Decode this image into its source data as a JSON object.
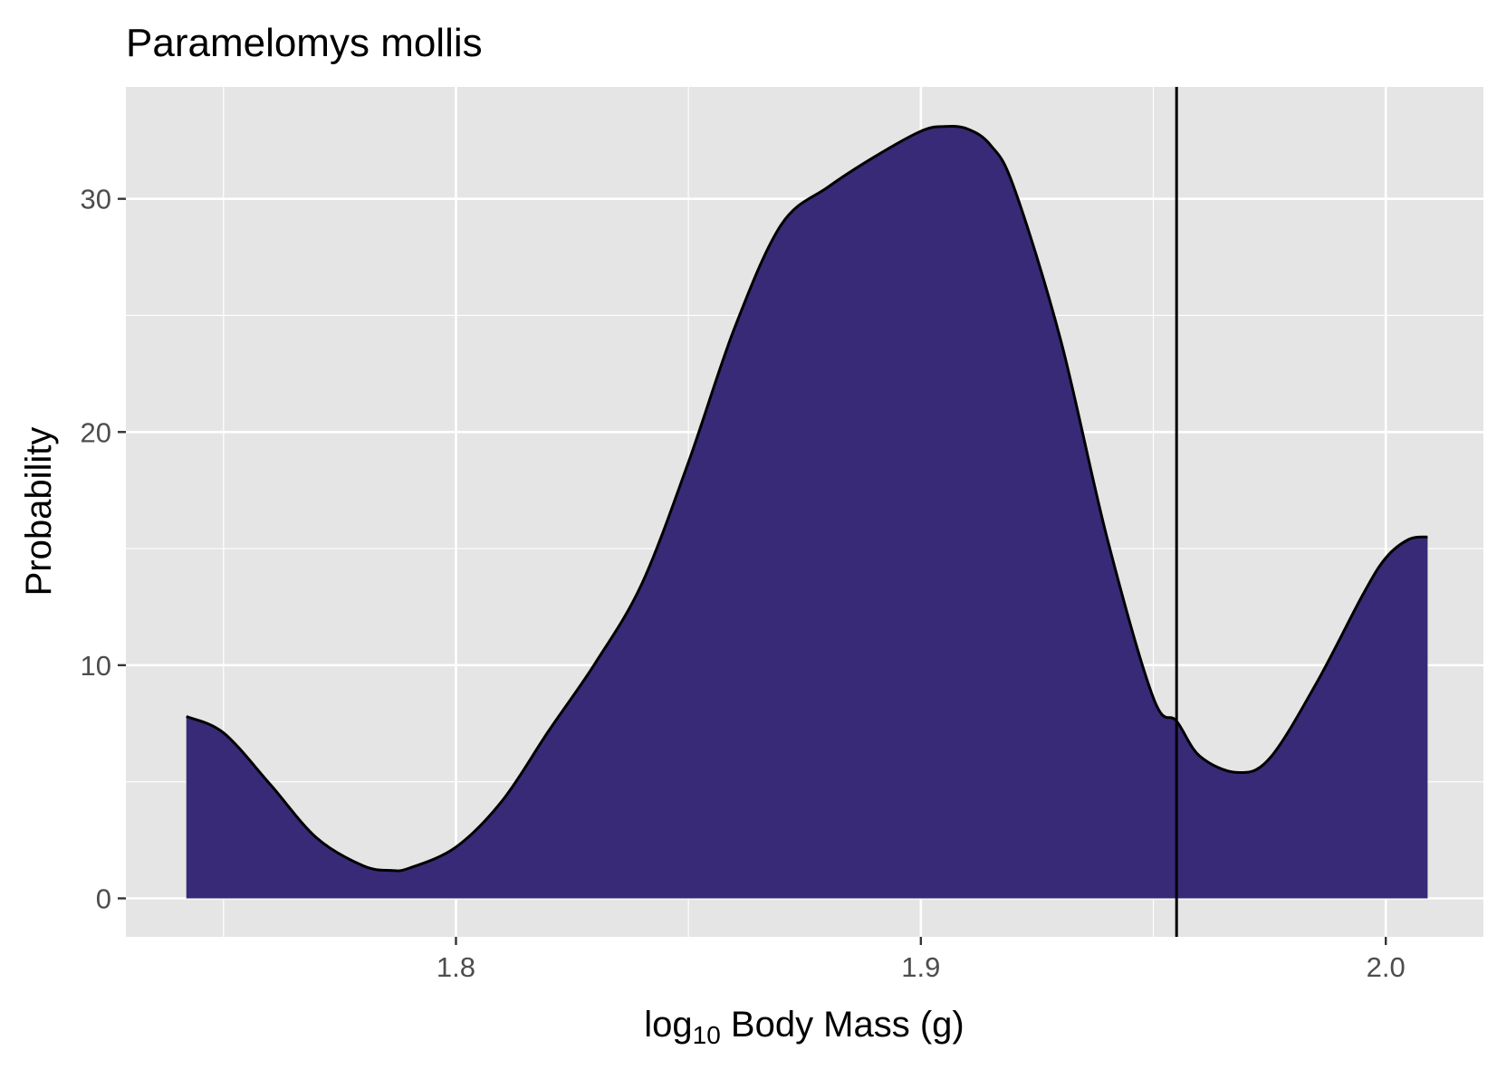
{
  "chart_data": {
    "type": "area",
    "title": "Paramelomys mollis",
    "xlabel": {
      "prefix": "log",
      "subscript": "10",
      "suffix": " Body Mass (g)"
    },
    "ylabel": "Probability",
    "xlim": [
      1.729,
      2.021
    ],
    "ylim": [
      -1.65,
      34.8
    ],
    "x_ticks": [
      1.8,
      1.9,
      2.0
    ],
    "x_tick_labels": [
      "1.8",
      "1.9",
      "2.0"
    ],
    "x_minor_ticks": [
      1.75,
      1.85,
      1.95
    ],
    "y_ticks": [
      0,
      10,
      20,
      30
    ],
    "y_tick_labels": [
      "0",
      "10",
      "20",
      "30"
    ],
    "y_minor_ticks": [
      5,
      15,
      25
    ],
    "grid": true,
    "reference_line_x": 1.955,
    "fill_color": "#382A77",
    "series": [
      {
        "x": [
          1.742,
          1.75,
          1.76,
          1.77,
          1.78,
          1.786,
          1.79,
          1.8,
          1.81,
          1.82,
          1.83,
          1.84,
          1.85,
          1.86,
          1.87,
          1.88,
          1.89,
          1.9,
          1.905,
          1.91,
          1.915,
          1.92,
          1.93,
          1.94,
          1.95,
          1.955,
          1.96,
          1.968,
          1.975,
          1.985,
          1.995,
          2.0,
          2.005,
          2.009
        ],
        "y": [
          7.8,
          7.1,
          4.9,
          2.6,
          1.4,
          1.2,
          1.3,
          2.2,
          4.2,
          7.2,
          10.1,
          13.5,
          18.7,
          24.5,
          28.9,
          30.5,
          31.8,
          32.9,
          33.1,
          33.0,
          32.3,
          30.5,
          24.0,
          15.5,
          8.6,
          7.6,
          6.1,
          5.4,
          6.0,
          9.2,
          13.0,
          14.6,
          15.4,
          15.5
        ]
      }
    ]
  }
}
